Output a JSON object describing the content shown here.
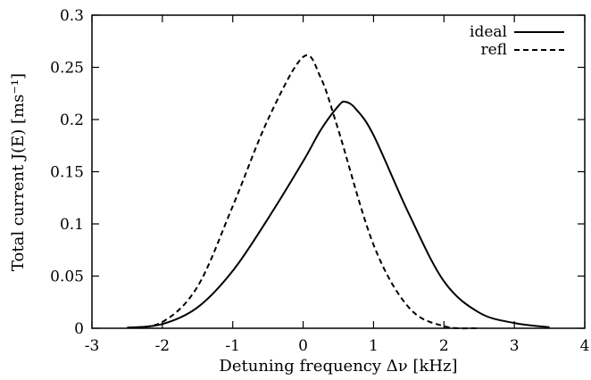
{
  "chart_data": {
    "type": "line",
    "title": "",
    "xlabel": "Detuning frequency Δν [kHz]",
    "ylabel": "Total current J(E) [ms⁻¹]",
    "xlim": [
      -3,
      4
    ],
    "ylim": [
      0,
      0.3
    ],
    "x_ticks": [
      "-3",
      "-2",
      "-1",
      "0",
      "1",
      "2",
      "3",
      "4"
    ],
    "y_ticks": [
      "0",
      "0.05",
      "0.1",
      "0.15",
      "0.2",
      "0.25",
      "0.3"
    ],
    "grid": false,
    "legend_position": "top-right",
    "series": [
      {
        "name": "ideal",
        "line_style": "solid",
        "color": "#000000",
        "x": [
          -2.5,
          -2.0,
          -1.5,
          -1.0,
          -0.5,
          0.0,
          0.25,
          0.5,
          0.6,
          0.75,
          1.0,
          1.5,
          2.0,
          2.5,
          3.0,
          3.5
        ],
        "y": [
          0.0005,
          0.004,
          0.02,
          0.055,
          0.105,
          0.16,
          0.19,
          0.213,
          0.217,
          0.21,
          0.185,
          0.11,
          0.045,
          0.015,
          0.005,
          0.001
        ]
      },
      {
        "name": "refl",
        "line_style": "dashed",
        "color": "#000000",
        "x": [
          -2.5,
          -2.0,
          -1.5,
          -1.0,
          -0.5,
          0.0,
          0.25,
          0.5,
          1.0,
          1.5,
          2.0,
          2.5
        ],
        "y": [
          0.0005,
          0.006,
          0.04,
          0.117,
          0.2,
          0.26,
          0.24,
          0.19,
          0.08,
          0.02,
          0.002,
          0.0
        ]
      }
    ]
  }
}
